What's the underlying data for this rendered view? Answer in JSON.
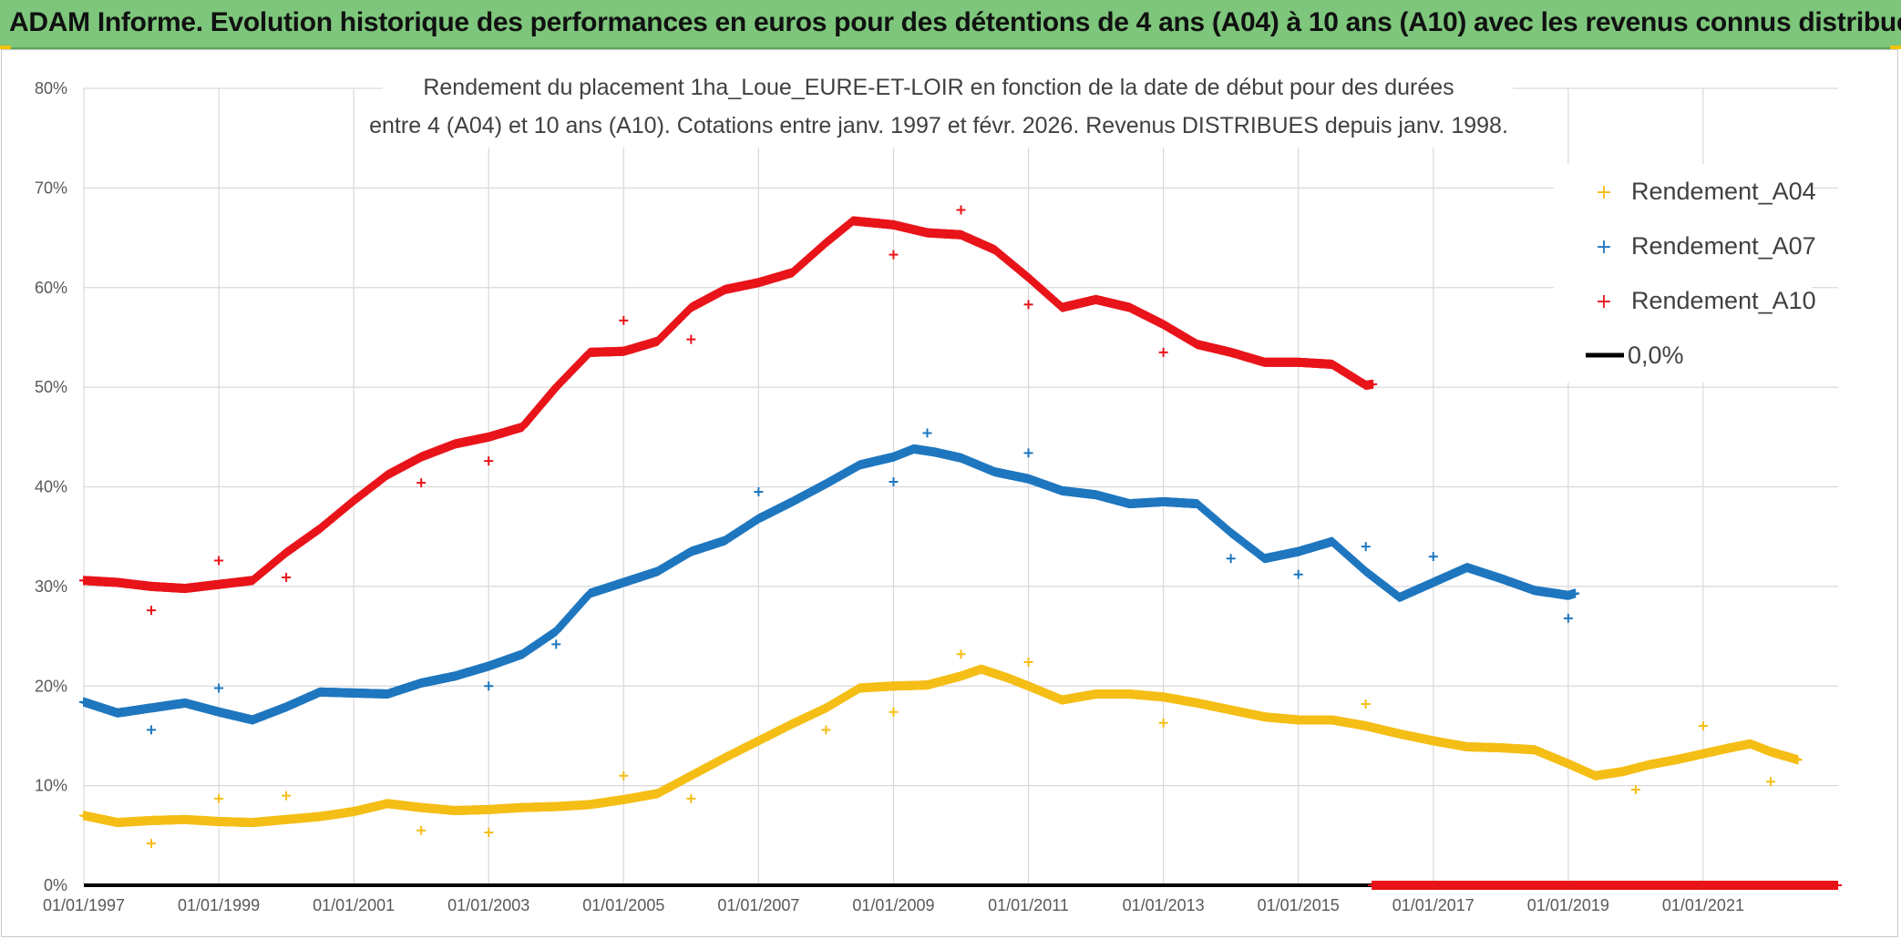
{
  "banner": {
    "text": "ADAM Informe. Evolution historique des performances en euros pour des détentions de 4 ans (A04) à 10 ans (A10) avec les revenus connus distribués"
  },
  "chart_data": {
    "type": "scatter",
    "title_lines": [
      "Rendement du placement 1ha_Loue_EURE-ET-LOIR en fonction de la date de début pour des durées",
      "entre 4 (A04) et 10 ans (A10). Cotations entre janv. 1997 et févr. 2026. Revenus DISTRIBUES depuis janv. 1998."
    ],
    "xlabel": "",
    "ylabel": "",
    "x_range": [
      1997.0,
      2023.0
    ],
    "ylim": [
      0,
      80
    ],
    "y_ticks": [
      "0%",
      "10%",
      "20%",
      "30%",
      "40%",
      "50%",
      "60%",
      "70%",
      "80%"
    ],
    "x_ticks": [
      "01/01/1997",
      "01/01/1999",
      "01/01/2001",
      "01/01/2003",
      "01/01/2005",
      "01/01/2007",
      "01/01/2009",
      "01/01/2011",
      "01/01/2013",
      "01/01/2015",
      "01/01/2017",
      "01/01/2019",
      "01/01/2021"
    ],
    "legend_position": "top-right",
    "series": [
      {
        "name": "Rendement_A04",
        "color": "#f5be16",
        "points": [
          [
            1997.0,
            7.0
          ],
          [
            1997.5,
            6.3
          ],
          [
            1998.0,
            6.5
          ],
          [
            1998.5,
            6.6
          ],
          [
            1999.0,
            6.4
          ],
          [
            1999.5,
            6.3
          ],
          [
            2000.0,
            6.6
          ],
          [
            2000.5,
            6.9
          ],
          [
            2001.0,
            7.4
          ],
          [
            2001.5,
            8.2
          ],
          [
            2002.0,
            7.8
          ],
          [
            2002.5,
            7.5
          ],
          [
            2003.0,
            7.6
          ],
          [
            2003.5,
            7.8
          ],
          [
            2004.0,
            7.9
          ],
          [
            2004.5,
            8.1
          ],
          [
            2005.0,
            8.6
          ],
          [
            2005.5,
            9.2
          ],
          [
            2006.0,
            11.0
          ],
          [
            2006.5,
            12.8
          ],
          [
            2007.0,
            14.5
          ],
          [
            2007.5,
            16.2
          ],
          [
            2008.0,
            17.8
          ],
          [
            2008.5,
            19.8
          ],
          [
            2009.0,
            20.0
          ],
          [
            2009.5,
            20.1
          ],
          [
            2010.0,
            21.0
          ],
          [
            2010.3,
            21.7
          ],
          [
            2010.7,
            20.8
          ],
          [
            2011.0,
            20.0
          ],
          [
            2011.5,
            18.6
          ],
          [
            2012.0,
            19.2
          ],
          [
            2012.5,
            19.2
          ],
          [
            2013.0,
            18.9
          ],
          [
            2013.5,
            18.3
          ],
          [
            2014.0,
            17.6
          ],
          [
            2014.5,
            16.9
          ],
          [
            2015.0,
            16.6
          ],
          [
            2015.5,
            16.6
          ],
          [
            2016.0,
            16.0
          ],
          [
            2016.5,
            15.2
          ],
          [
            2017.0,
            14.5
          ],
          [
            2017.5,
            13.9
          ],
          [
            2018.0,
            13.8
          ],
          [
            2018.5,
            13.6
          ],
          [
            2019.0,
            12.2
          ],
          [
            2019.4,
            11.0
          ],
          [
            2019.8,
            11.4
          ],
          [
            2020.2,
            12.1
          ],
          [
            2020.6,
            12.6
          ],
          [
            2021.0,
            13.2
          ],
          [
            2021.4,
            13.8
          ],
          [
            2021.7,
            14.2
          ],
          [
            2022.0,
            13.4
          ],
          [
            2022.4,
            12.6
          ]
        ],
        "outliers": [
          [
            1998.0,
            4.2
          ],
          [
            1999.0,
            8.7
          ],
          [
            2000.0,
            9.0
          ],
          [
            2002.0,
            5.5
          ],
          [
            2003.0,
            5.3
          ],
          [
            2005.0,
            11.0
          ],
          [
            2006.0,
            8.7
          ],
          [
            2008.0,
            15.6
          ],
          [
            2009.0,
            17.4
          ],
          [
            2010.0,
            23.2
          ],
          [
            2011.0,
            22.4
          ],
          [
            2013.0,
            16.3
          ],
          [
            2016.0,
            18.2
          ],
          [
            2020.0,
            9.6
          ],
          [
            2021.0,
            16.0
          ],
          [
            2022.0,
            10.4
          ]
        ]
      },
      {
        "name": "Rendement_A07",
        "color": "#1f77bf",
        "points": [
          [
            1997.0,
            18.4
          ],
          [
            1997.5,
            17.3
          ],
          [
            1998.0,
            17.8
          ],
          [
            1998.5,
            18.3
          ],
          [
            1999.0,
            17.4
          ],
          [
            1999.5,
            16.6
          ],
          [
            2000.0,
            17.9
          ],
          [
            2000.5,
            19.4
          ],
          [
            2001.0,
            19.3
          ],
          [
            2001.5,
            19.2
          ],
          [
            2002.0,
            20.3
          ],
          [
            2002.5,
            21.0
          ],
          [
            2003.0,
            22.0
          ],
          [
            2003.5,
            23.2
          ],
          [
            2004.0,
            25.5
          ],
          [
            2004.5,
            29.3
          ],
          [
            2005.0,
            30.4
          ],
          [
            2005.5,
            31.5
          ],
          [
            2006.0,
            33.5
          ],
          [
            2006.5,
            34.6
          ],
          [
            2007.0,
            36.8
          ],
          [
            2007.5,
            38.5
          ],
          [
            2008.0,
            40.3
          ],
          [
            2008.5,
            42.2
          ],
          [
            2009.0,
            43.0
          ],
          [
            2009.3,
            43.8
          ],
          [
            2009.6,
            43.5
          ],
          [
            2010.0,
            42.9
          ],
          [
            2010.5,
            41.5
          ],
          [
            2011.0,
            40.8
          ],
          [
            2011.5,
            39.6
          ],
          [
            2012.0,
            39.2
          ],
          [
            2012.5,
            38.3
          ],
          [
            2013.0,
            38.5
          ],
          [
            2013.5,
            38.3
          ],
          [
            2014.0,
            35.4
          ],
          [
            2014.5,
            32.8
          ],
          [
            2015.0,
            33.5
          ],
          [
            2015.5,
            34.5
          ],
          [
            2016.0,
            31.5
          ],
          [
            2016.5,
            28.9
          ],
          [
            2017.0,
            30.4
          ],
          [
            2017.5,
            31.9
          ],
          [
            2018.0,
            30.8
          ],
          [
            2018.5,
            29.6
          ],
          [
            2019.0,
            29.1
          ],
          [
            2019.1,
            29.3
          ]
        ],
        "outliers": [
          [
            1998.0,
            15.6
          ],
          [
            1999.0,
            19.8
          ],
          [
            2003.0,
            20.0
          ],
          [
            2004.0,
            24.2
          ],
          [
            2007.0,
            39.5
          ],
          [
            2009.0,
            40.5
          ],
          [
            2009.5,
            45.4
          ],
          [
            2011.0,
            43.4
          ],
          [
            2014.0,
            32.8
          ],
          [
            2015.0,
            31.2
          ],
          [
            2016.0,
            34.0
          ],
          [
            2017.0,
            33.0
          ],
          [
            2019.0,
            26.8
          ]
        ]
      },
      {
        "name": "Rendement_A10",
        "color": "#e8141a",
        "points": [
          [
            1997.0,
            30.6
          ],
          [
            1997.5,
            30.4
          ],
          [
            1998.0,
            30.0
          ],
          [
            1998.5,
            29.8
          ],
          [
            1999.0,
            30.2
          ],
          [
            1999.5,
            30.6
          ],
          [
            2000.0,
            33.4
          ],
          [
            2000.5,
            35.8
          ],
          [
            2001.0,
            38.6
          ],
          [
            2001.5,
            41.2
          ],
          [
            2002.0,
            43.0
          ],
          [
            2002.5,
            44.3
          ],
          [
            2003.0,
            45.0
          ],
          [
            2003.5,
            46.0
          ],
          [
            2004.0,
            50.0
          ],
          [
            2004.5,
            53.5
          ],
          [
            2005.0,
            53.6
          ],
          [
            2005.5,
            54.6
          ],
          [
            2006.0,
            58.0
          ],
          [
            2006.5,
            59.8
          ],
          [
            2007.0,
            60.5
          ],
          [
            2007.5,
            61.5
          ],
          [
            2008.0,
            64.5
          ],
          [
            2008.4,
            66.7
          ],
          [
            2009.0,
            66.3
          ],
          [
            2009.5,
            65.5
          ],
          [
            2010.0,
            65.3
          ],
          [
            2010.5,
            63.8
          ],
          [
            2011.0,
            61.0
          ],
          [
            2011.5,
            58.0
          ],
          [
            2012.0,
            58.8
          ],
          [
            2012.5,
            58.0
          ],
          [
            2013.0,
            56.3
          ],
          [
            2013.5,
            54.3
          ],
          [
            2014.0,
            53.5
          ],
          [
            2014.5,
            52.5
          ],
          [
            2015.0,
            52.5
          ],
          [
            2015.5,
            52.3
          ],
          [
            2016.0,
            50.2
          ],
          [
            2016.1,
            50.3
          ]
        ],
        "outliers": [
          [
            1998.0,
            27.6
          ],
          [
            1999.0,
            32.6
          ],
          [
            2000.0,
            30.9
          ],
          [
            2002.0,
            40.4
          ],
          [
            2003.0,
            42.6
          ],
          [
            2005.0,
            56.7
          ],
          [
            2006.0,
            54.8
          ],
          [
            2009.0,
            63.3
          ],
          [
            2010.0,
            67.8
          ],
          [
            2011.0,
            58.3
          ],
          [
            2013.0,
            53.5
          ]
        ],
        "zero_segment": {
          "from": 2016.1,
          "to": 2023.0
        }
      },
      {
        "name": "0,0%",
        "color": "#000000",
        "type": "line",
        "points": [
          [
            1997.0,
            0
          ],
          [
            2016.1,
            0
          ]
        ]
      }
    ]
  }
}
